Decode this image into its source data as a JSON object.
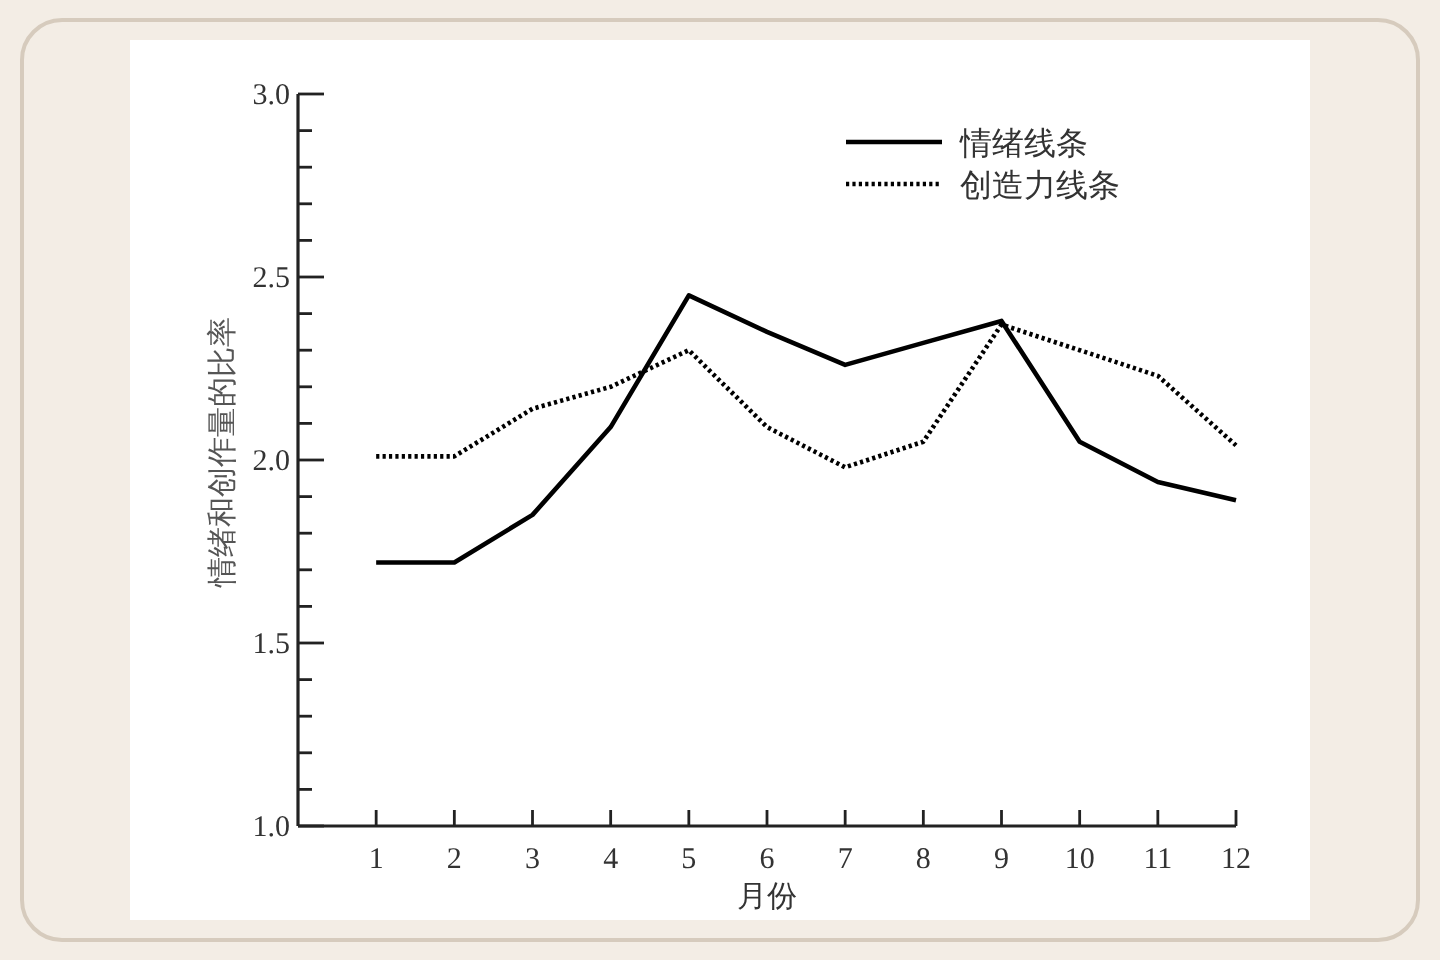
{
  "chart_data": {
    "type": "line",
    "xlabel": "月份",
    "ylabel": "情绪和创作量的比率",
    "x": [
      1,
      2,
      3,
      4,
      5,
      6,
      7,
      8,
      9,
      10,
      11,
      12
    ],
    "xlim": [
      0,
      12
    ],
    "xticks": [
      1,
      2,
      3,
      4,
      5,
      6,
      7,
      8,
      9,
      10,
      11,
      12
    ],
    "ylim": [
      1,
      3
    ],
    "yticks": [
      {
        "value": 1,
        "label": "1.0"
      },
      {
        "value": 1.1,
        "label": null
      },
      {
        "value": 1.2,
        "label": null
      },
      {
        "value": 1.3,
        "label": null
      },
      {
        "value": 1.4,
        "label": null
      },
      {
        "value": 1.5,
        "label": "1.5"
      },
      {
        "value": 1.6,
        "label": null
      },
      {
        "value": 1.7,
        "label": null
      },
      {
        "value": 1.8,
        "label": null
      },
      {
        "value": 1.9,
        "label": null
      },
      {
        "value": 2,
        "label": "2.0"
      },
      {
        "value": 2.1,
        "label": null
      },
      {
        "value": 2.2,
        "label": null
      },
      {
        "value": 2.3,
        "label": null
      },
      {
        "value": 2.4,
        "label": null
      },
      {
        "value": 2.5,
        "label": "2.5"
      },
      {
        "value": 2.6,
        "label": null
      },
      {
        "value": 2.7,
        "label": null
      },
      {
        "value": 2.8,
        "label": null
      },
      {
        "value": 2.9,
        "label": null
      },
      {
        "value": 3,
        "label": "3.0"
      }
    ],
    "legend": "top right",
    "series": [
      {
        "name": "情绪线条",
        "color": "#000000",
        "line_style": "solid",
        "values": [
          1.72,
          1.72,
          1.85,
          2.09,
          2.45,
          2.35,
          2.26,
          2.32,
          2.38,
          2.05,
          1.94,
          1.89
        ]
      },
      {
        "name": "创造力线条",
        "color": "#000000",
        "line_style": "dotted",
        "values": [
          2.01,
          2.01,
          2.14,
          2.2,
          2.3,
          2.09,
          1.98,
          2.05,
          2.37,
          2.3,
          2.23,
          2.04
        ]
      }
    ]
  }
}
